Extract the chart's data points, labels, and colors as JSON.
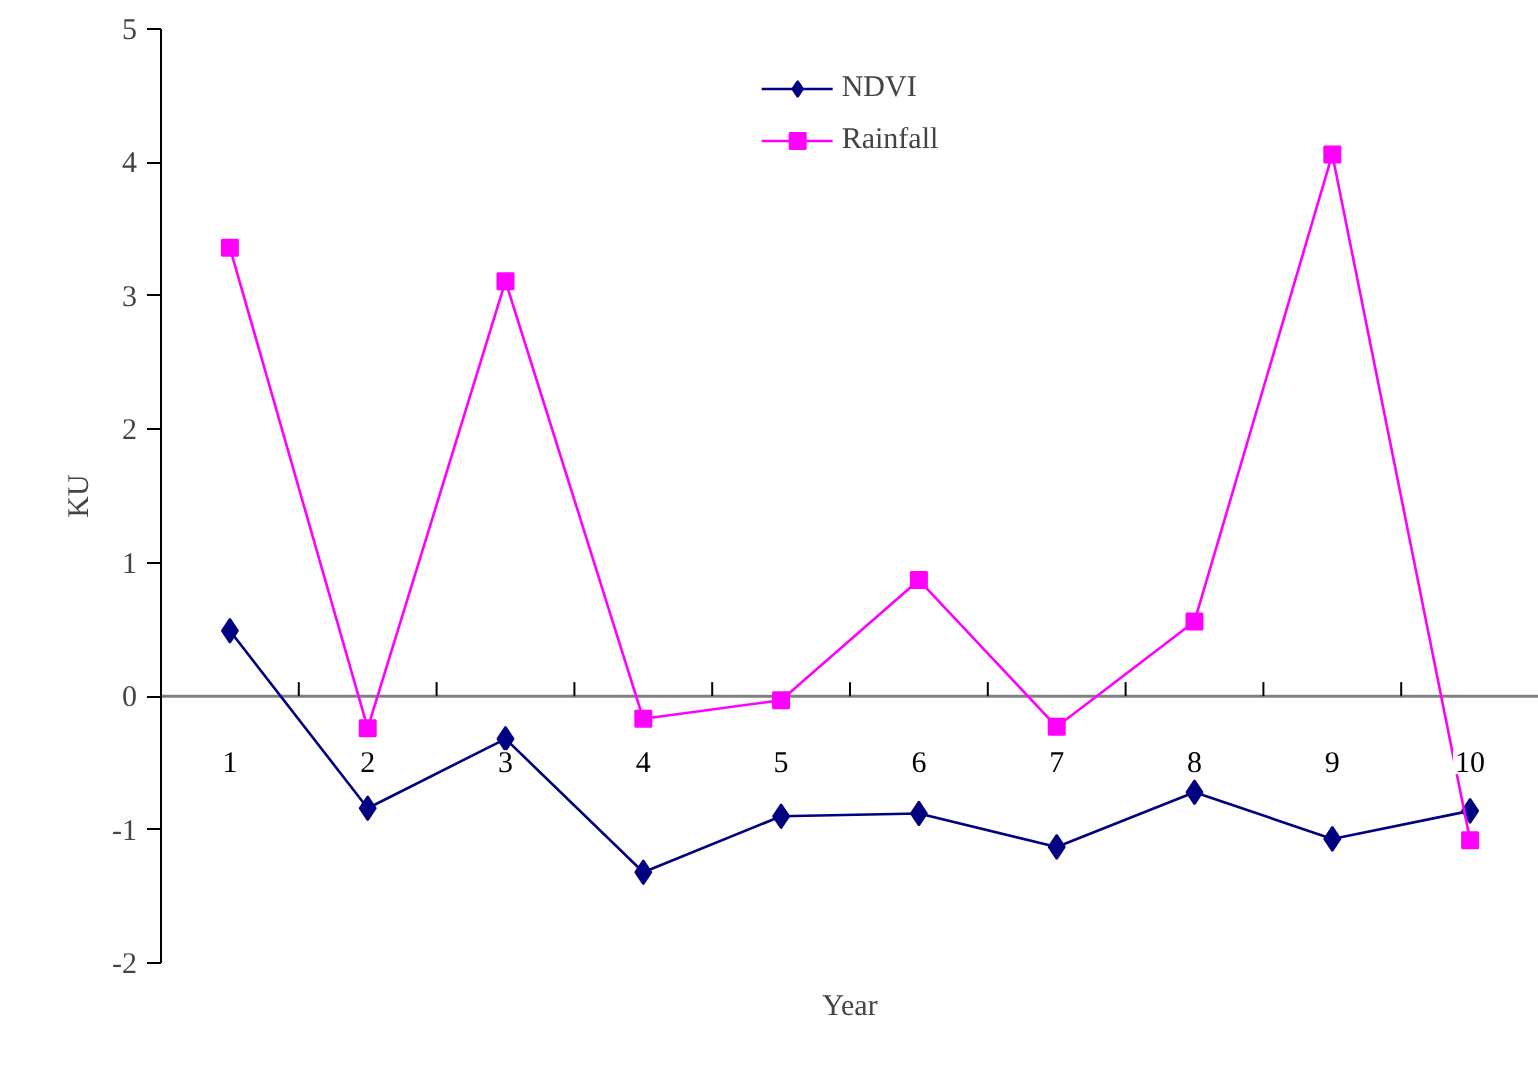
{
  "chart_data": {
    "type": "line",
    "xlabel": "Year",
    "ylabel": "KU",
    "categories": [
      "1",
      "2",
      "3",
      "4",
      "5",
      "6",
      "7",
      "8",
      "9",
      "10"
    ],
    "series": [
      {
        "name": "NDVI",
        "color": "#000080",
        "marker": "diamond",
        "values": [
          0.49,
          -0.84,
          -0.32,
          -1.32,
          -0.9,
          -0.88,
          -1.13,
          -0.72,
          -1.07,
          -0.86
        ]
      },
      {
        "name": "Rainfall",
        "color": "#ff00ff",
        "marker": "square",
        "values": [
          3.36,
          -0.24,
          3.11,
          -0.17,
          -0.03,
          0.87,
          -0.23,
          0.56,
          4.06,
          -1.08
        ]
      }
    ],
    "ylim": [
      -2,
      5
    ],
    "yticks": [
      -2,
      -1,
      0,
      1,
      2,
      3,
      4,
      5
    ],
    "grid": false,
    "legend": "top"
  }
}
